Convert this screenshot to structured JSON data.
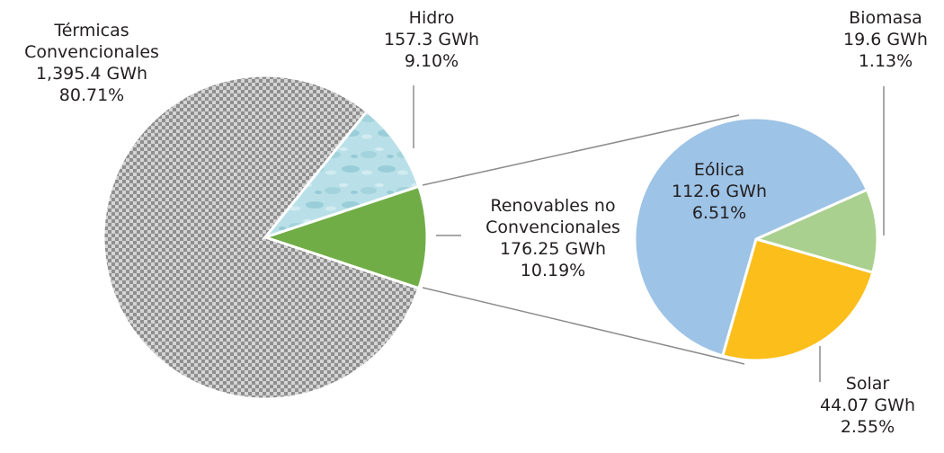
{
  "chart_data": {
    "type": "pie",
    "subtype": "pie-of-pie",
    "title": "",
    "main_pie": [
      {
        "name": "Térmicas",
        "name2": "Convencionales",
        "energy": "1,395.4 GWh",
        "value": 1395.4,
        "pct": "80.71%",
        "pattern": "checkerboard",
        "color": "#9a9a9a"
      },
      {
        "name": "Hidro",
        "energy": "157.3 GWh",
        "value": 157.3,
        "pct": "9.10%",
        "pattern": "water-texture",
        "color": "#a9d6e0"
      },
      {
        "name": "Renovables no",
        "name2": "Convencionales",
        "energy": "176.25 GWh",
        "value": 176.25,
        "pct": "10.19%",
        "color": "#70ad47"
      }
    ],
    "sub_pie": [
      {
        "name": "Eólica",
        "energy": "112.6 GWh",
        "value": 112.6,
        "pct": "6.51%",
        "color": "#9dc3e6"
      },
      {
        "name": "Solar",
        "energy": "44.07 GWh",
        "value": 44.07,
        "pct": "2.55%",
        "color": "#fbbe1b"
      },
      {
        "name": "Biomasa",
        "energy": "19.6 GWh",
        "value": 19.6,
        "pct": "1.13%",
        "color": "#a9d08e"
      }
    ]
  }
}
